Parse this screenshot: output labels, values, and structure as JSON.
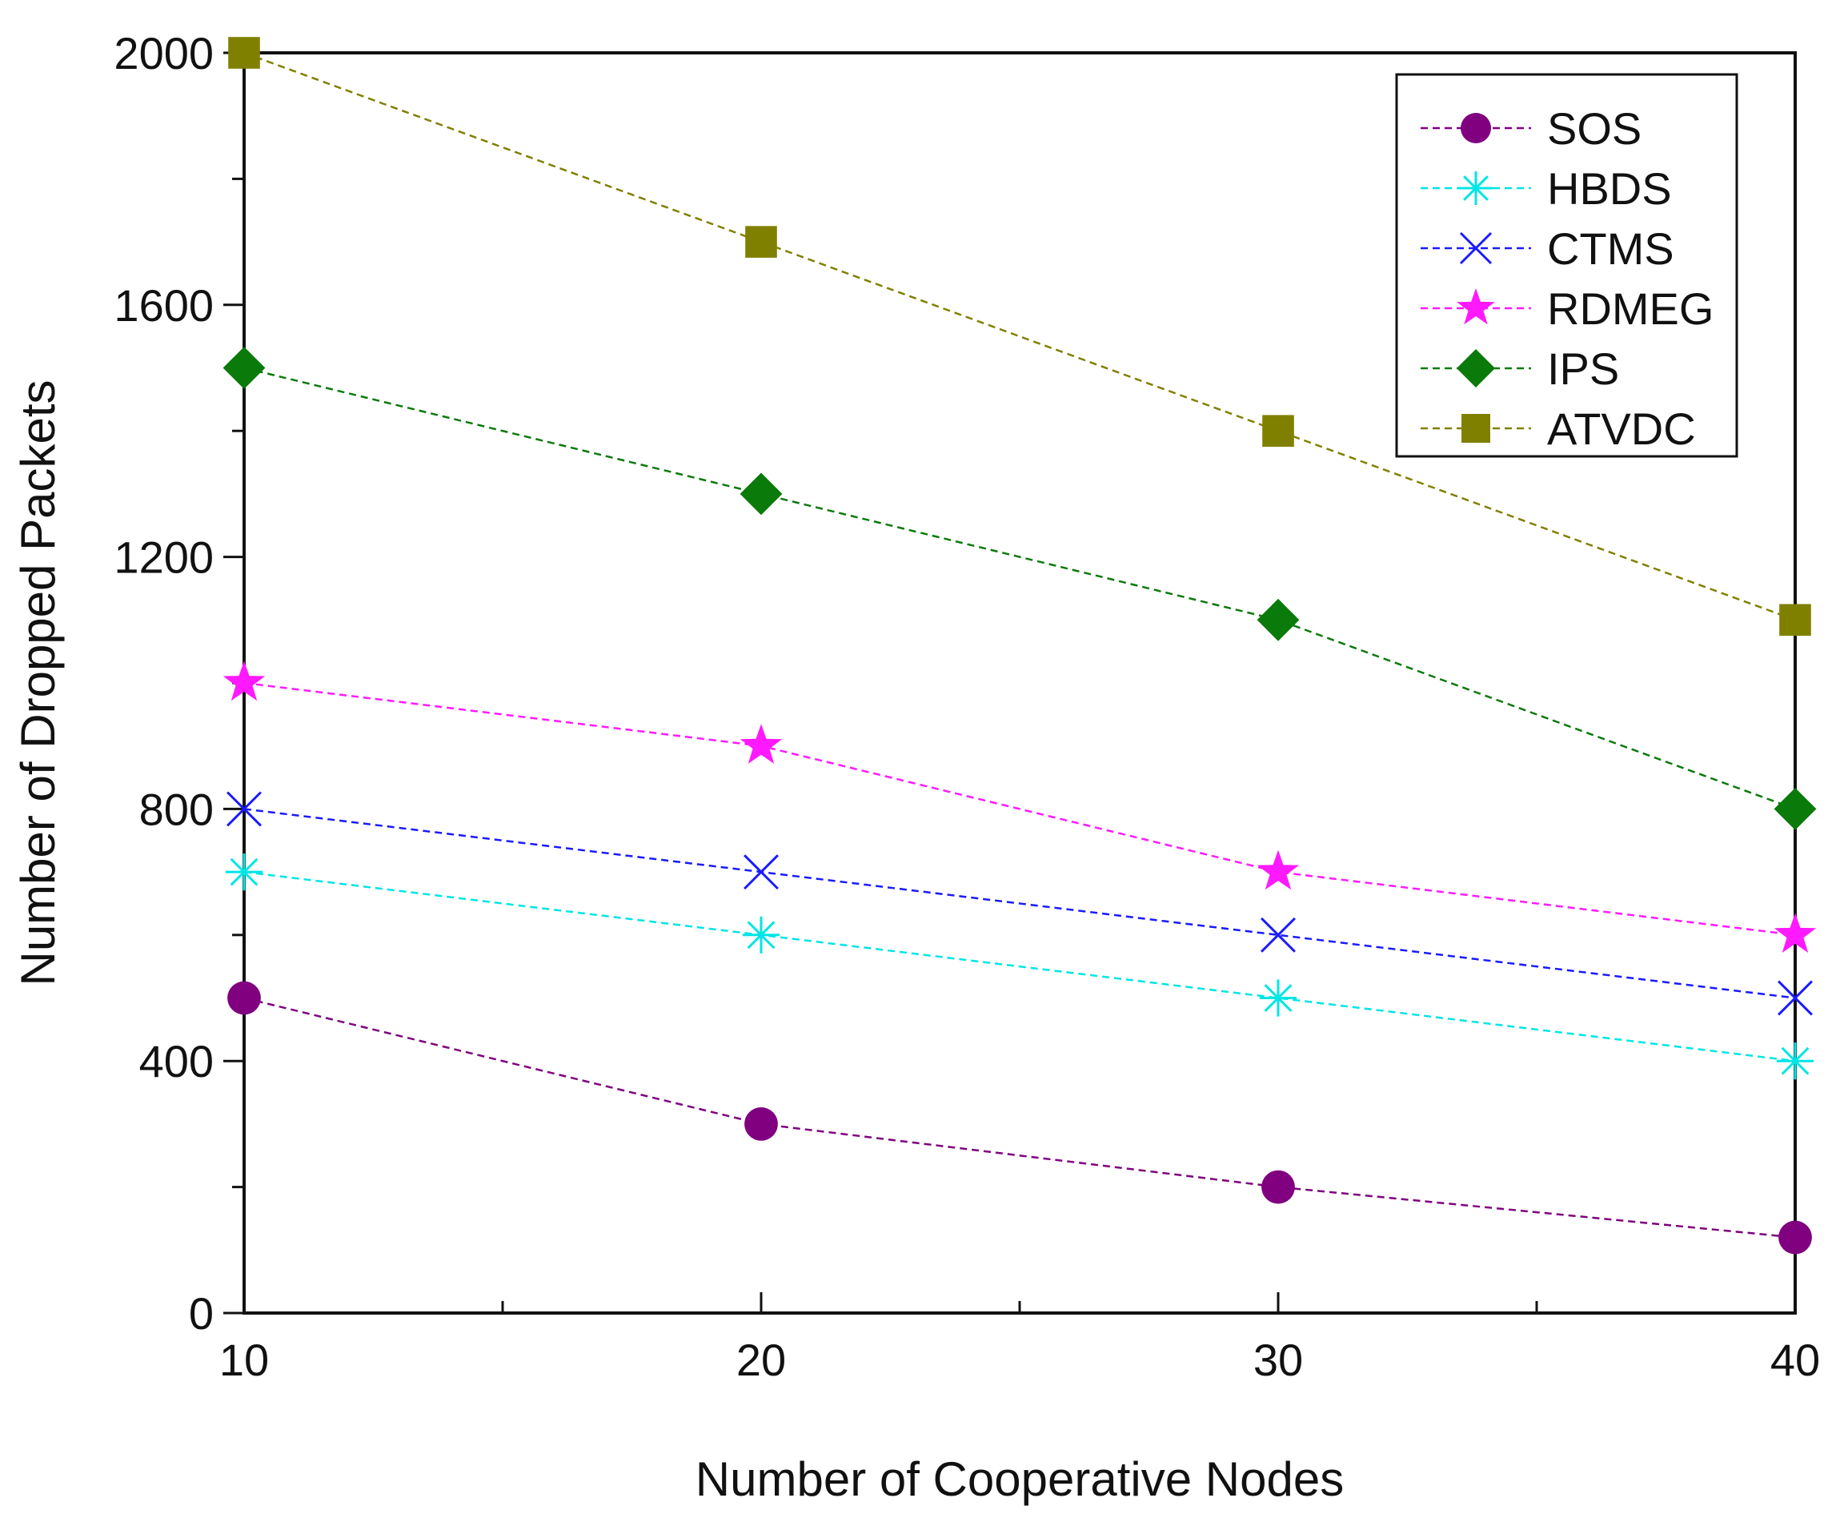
{
  "chart_data": {
    "type": "line",
    "title": "",
    "xlabel": "Number of Cooperative Nodes",
    "ylabel": "Number of Dropped Packets",
    "x": [
      10,
      20,
      30,
      40
    ],
    "xlim": [
      10,
      40
    ],
    "ylim": [
      0,
      2000
    ],
    "xticks": [
      10,
      20,
      30,
      40
    ],
    "yticks": [
      0,
      400,
      800,
      1200,
      1600,
      2000
    ],
    "grid": false,
    "legend_position": "top-right",
    "series": [
      {
        "name": "SOS",
        "values": [
          500,
          300,
          200,
          120
        ],
        "color": "#800080",
        "marker": "circle"
      },
      {
        "name": "HBDS",
        "values": [
          700,
          600,
          500,
          400
        ],
        "color": "#00e5e5",
        "marker": "asterisk"
      },
      {
        "name": "CTMS",
        "values": [
          800,
          700,
          600,
          500
        ],
        "color": "#1a1aff",
        "marker": "x"
      },
      {
        "name": "RDMEG",
        "values": [
          1000,
          900,
          700,
          600
        ],
        "color": "#ff19ff",
        "marker": "star"
      },
      {
        "name": "IPS",
        "values": [
          1500,
          1300,
          1100,
          800
        ],
        "color": "#0a7a0a",
        "marker": "diamond"
      },
      {
        "name": "ATVDC",
        "values": [
          2000,
          1700,
          1400,
          1100
        ],
        "color": "#808000",
        "marker": "square"
      }
    ]
  }
}
